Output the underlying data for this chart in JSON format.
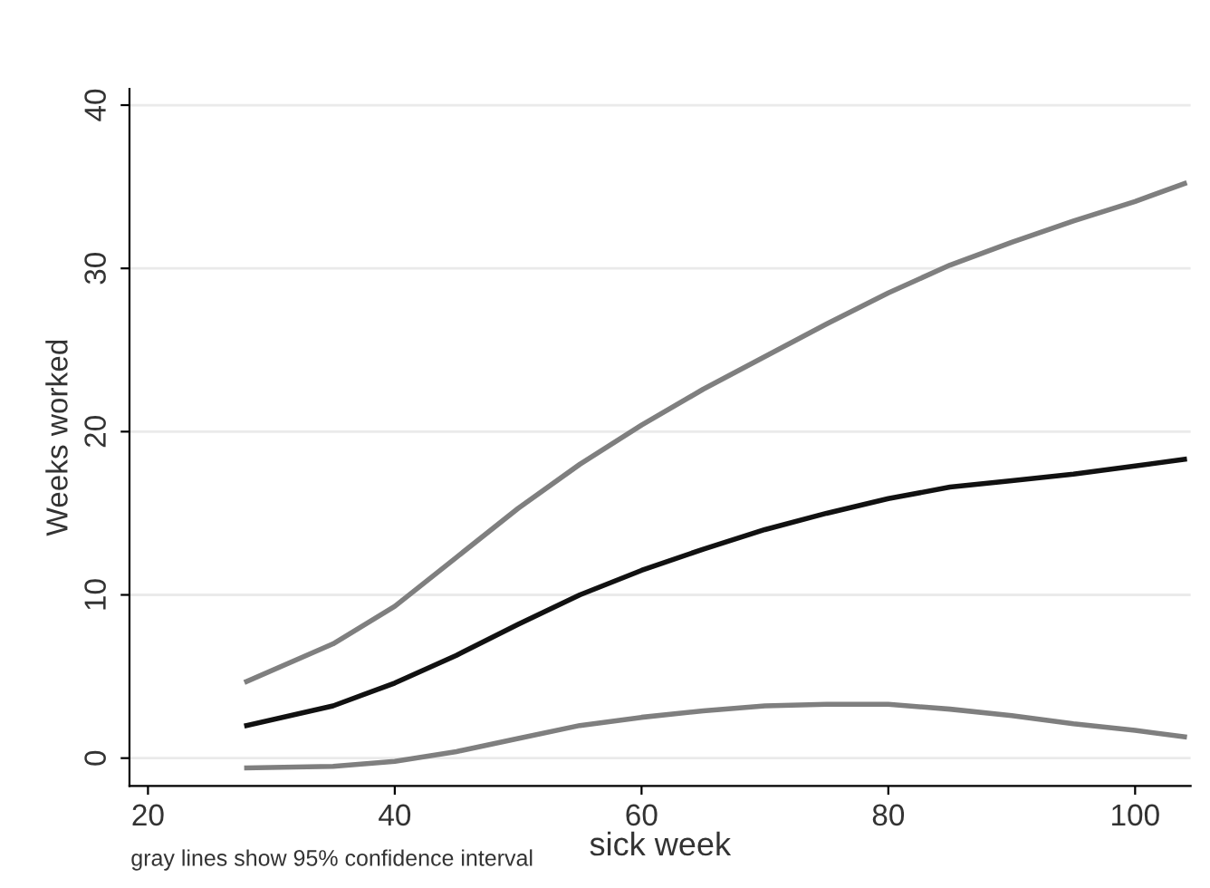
{
  "chart_data": {
    "type": "line",
    "xlabel": "sick week",
    "ylabel": "Weeks worked",
    "annotations": [
      "gray lines show 95% confidence interval"
    ],
    "xlim": [
      18.5,
      104.5
    ],
    "ylim": [
      -1.7,
      41
    ],
    "xticks": [
      20,
      40,
      60,
      80,
      100
    ],
    "yticks": [
      0,
      10,
      20,
      30,
      40
    ],
    "grid": "y",
    "legend": false,
    "x": [
      28,
      35,
      40,
      45,
      50,
      55,
      60,
      65,
      70,
      75,
      80,
      85,
      90,
      95,
      100,
      104
    ],
    "series": [
      {
        "color": "#7f7f7f",
        "values": [
          4.7,
          7,
          9.3,
          12.3,
          15.3,
          18,
          20.4,
          22.6,
          24.6,
          26.6,
          28.5,
          30.2,
          31.6,
          32.9,
          34.1,
          35.2
        ]
      },
      {
        "color": "#111111",
        "values": [
          2,
          3.2,
          4.6,
          6.3,
          8.2,
          10,
          11.5,
          12.8,
          14,
          15,
          15.9,
          16.6,
          17,
          17.4,
          17.9,
          18.3
        ]
      },
      {
        "color": "#7f7f7f",
        "values": [
          -0.6,
          -0.5,
          -0.2,
          0.4,
          1.2,
          2,
          2.5,
          2.9,
          3.2,
          3.3,
          3.3,
          3,
          2.6,
          2.1,
          1.7,
          1.3
        ]
      }
    ]
  }
}
